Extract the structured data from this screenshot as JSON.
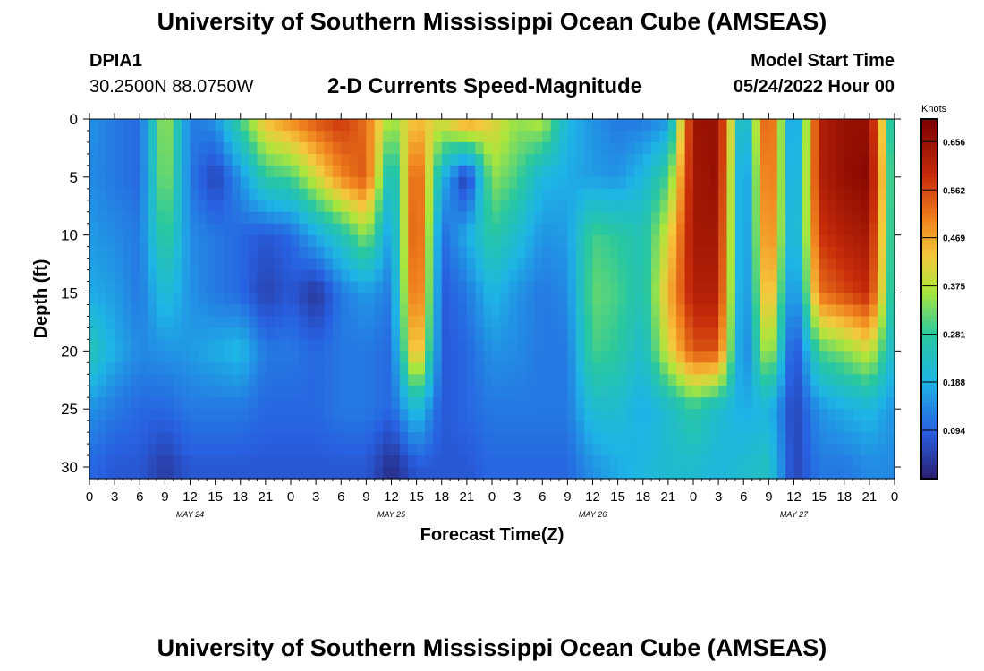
{
  "header": {
    "title": "University of Southern Mississippi Ocean Cube (AMSEAS)",
    "station_id": "DPIA1",
    "station_coords": "30.2500N  88.0750W",
    "subtitle": "2-D Currents Speed-Magnitude",
    "model_start_label": "Model Start Time",
    "model_start_value": "05/24/2022 Hour 00"
  },
  "footer": {
    "title": "University of Southern Mississippi Ocean Cube (AMSEAS)"
  },
  "colors": {
    "low": "#2a1e70",
    "high": "#7a0000"
  },
  "chart_data": {
    "type": "heatmap",
    "title": "2-D Currents Speed-Magnitude",
    "xlabel": "Forecast Time(Z)",
    "ylabel": "Depth (ft)",
    "x_range_hours": [
      0,
      96
    ],
    "x_tick_step_hours": 3,
    "x_tick_labels": [
      "0",
      "3",
      "6",
      "9",
      "12",
      "15",
      "18",
      "21",
      "0",
      "3",
      "6",
      "9",
      "12",
      "15",
      "18",
      "21",
      "0",
      "3",
      "6",
      "9",
      "12",
      "15",
      "18",
      "21",
      "0",
      "3",
      "6",
      "9",
      "12",
      "15",
      "18",
      "21",
      "0"
    ],
    "day_labels": [
      {
        "label": "MAY 24",
        "hour": 12
      },
      {
        "label": "MAY 25",
        "hour": 36
      },
      {
        "label": "MAY 26",
        "hour": 60
      },
      {
        "label": "MAY 27",
        "hour": 84
      }
    ],
    "y_range_ft": [
      0,
      31
    ],
    "y_ticks": [
      "0",
      "5",
      "10",
      "15",
      "20",
      "25",
      "30"
    ],
    "colorbar": {
      "unit": "Knots",
      "min": 0.0,
      "max": 0.7,
      "tick_values": [
        0.094,
        0.188,
        0.281,
        0.375,
        0.469,
        0.562,
        0.656
      ],
      "tick_labels": [
        "0.094",
        "0.188",
        "0.281",
        "0.375",
        "0.469",
        "0.562",
        "0.656"
      ]
    },
    "depth_levels_ft": [
      0,
      5,
      10,
      15,
      20,
      25,
      30
    ],
    "speed_knots_by_depth": {
      "hours": [
        0,
        3,
        6,
        9,
        12,
        15,
        18,
        21,
        24,
        27,
        30,
        33,
        36,
        39,
        42,
        45,
        48,
        51,
        54,
        57,
        60,
        63,
        66,
        69,
        72,
        75,
        78,
        81,
        84,
        87,
        90,
        93,
        96
      ],
      "rows": [
        [
          0.15,
          0.12,
          0.1,
          0.38,
          0.12,
          0.15,
          0.3,
          0.45,
          0.5,
          0.55,
          0.58,
          0.52,
          0.35,
          0.45,
          0.4,
          0.5,
          0.42,
          0.35,
          0.38,
          0.2,
          0.15,
          0.12,
          0.12,
          0.15,
          0.65,
          0.66,
          0.15,
          0.6,
          0.1,
          0.62,
          0.66,
          0.66,
          0.2
        ],
        [
          0.14,
          0.12,
          0.1,
          0.36,
          0.12,
          0.05,
          0.15,
          0.28,
          0.3,
          0.4,
          0.5,
          0.55,
          0.2,
          0.58,
          0.2,
          0.03,
          0.35,
          0.3,
          0.2,
          0.18,
          0.16,
          0.15,
          0.2,
          0.3,
          0.64,
          0.66,
          0.1,
          0.58,
          0.12,
          0.62,
          0.66,
          0.68,
          0.22
        ],
        [
          0.16,
          0.14,
          0.12,
          0.3,
          0.14,
          0.12,
          0.1,
          0.08,
          0.1,
          0.18,
          0.25,
          0.35,
          0.15,
          0.6,
          0.1,
          0.18,
          0.28,
          0.22,
          0.15,
          0.16,
          0.3,
          0.28,
          0.25,
          0.4,
          0.64,
          0.64,
          0.1,
          0.55,
          0.14,
          0.58,
          0.62,
          0.64,
          0.22
        ],
        [
          0.18,
          0.16,
          0.12,
          0.22,
          0.15,
          0.12,
          0.1,
          0.05,
          0.08,
          0.03,
          0.12,
          0.16,
          0.12,
          0.58,
          0.08,
          0.12,
          0.2,
          0.15,
          0.12,
          0.14,
          0.32,
          0.3,
          0.25,
          0.45,
          0.62,
          0.62,
          0.1,
          0.5,
          0.1,
          0.52,
          0.56,
          0.6,
          0.22
        ],
        [
          0.26,
          0.18,
          0.14,
          0.15,
          0.16,
          0.18,
          0.2,
          0.12,
          0.12,
          0.1,
          0.12,
          0.12,
          0.1,
          0.5,
          0.08,
          0.1,
          0.15,
          0.14,
          0.12,
          0.12,
          0.3,
          0.28,
          0.22,
          0.4,
          0.55,
          0.55,
          0.1,
          0.4,
          0.05,
          0.3,
          0.34,
          0.4,
          0.2
        ],
        [
          0.15,
          0.12,
          0.1,
          0.1,
          0.12,
          0.12,
          0.12,
          0.1,
          0.1,
          0.1,
          0.12,
          0.12,
          0.1,
          0.22,
          0.08,
          0.1,
          0.12,
          0.12,
          0.12,
          0.12,
          0.22,
          0.22,
          0.18,
          0.22,
          0.28,
          0.22,
          0.18,
          0.2,
          0.05,
          0.15,
          0.18,
          0.2,
          0.15
        ],
        [
          0.1,
          0.08,
          0.08,
          0.04,
          0.08,
          0.08,
          0.08,
          0.08,
          0.08,
          0.08,
          0.08,
          0.08,
          0.02,
          0.08,
          0.08,
          0.08,
          0.1,
          0.1,
          0.1,
          0.1,
          0.15,
          0.18,
          0.2,
          0.22,
          0.22,
          0.2,
          0.22,
          0.24,
          0.05,
          0.12,
          0.12,
          0.14,
          0.14
        ]
      ]
    }
  }
}
